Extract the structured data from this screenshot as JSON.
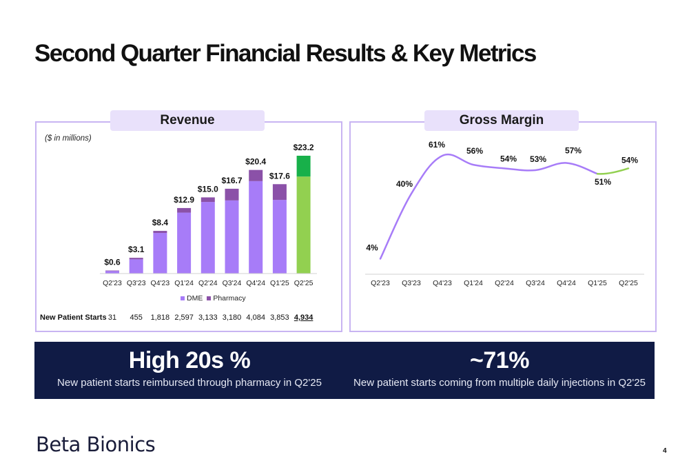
{
  "page": {
    "title": "Second Quarter Financial Results & Key Metrics",
    "page_number": "4",
    "logo_text": "Beta Bionics"
  },
  "revenue_panel": {
    "header": "Revenue",
    "units_note": "($ in millions)",
    "legend": [
      {
        "label": "DME",
        "color": "#a77cf8"
      },
      {
        "label": "Pharmacy",
        "color": "#8b51a8"
      }
    ],
    "new_patient_starts_label": "New Patient Starts",
    "new_patient_starts": [
      "31",
      "455",
      "1,818",
      "2,597",
      "3,133",
      "3,180",
      "4,084",
      "3,853",
      "4,934"
    ]
  },
  "gross_margin_panel": {
    "header": "Gross Margin"
  },
  "kpis": [
    {
      "value": "High 20s %",
      "caption": "New patient starts reimbursed through pharmacy in Q2'25"
    },
    {
      "value": "~71%",
      "caption": "New patient starts coming from multiple daily injections in Q2'25"
    }
  ],
  "colors": {
    "dme": "#a77cf8",
    "pharmacy": "#8b51a8",
    "dme_current": "#92d050",
    "pharmacy_current": "#18b04a",
    "line": "#a77cf8",
    "line_current": "#92d050",
    "panel_border": "#c8b4f2",
    "banner": "#101b45"
  },
  "chart_data": [
    {
      "type": "bar",
      "title": "Revenue",
      "categories": [
        "Q2'23",
        "Q3'23",
        "Q4'23",
        "Q1'24",
        "Q2'24",
        "Q3'24",
        "Q4'24",
        "Q1'25",
        "Q2'25"
      ],
      "series": [
        {
          "name": "DME",
          "values": [
            0.5,
            2.8,
            8.0,
            12.0,
            14.1,
            14.4,
            18.2,
            14.5,
            19.1
          ]
        },
        {
          "name": "Pharmacy",
          "values": [
            0.1,
            0.3,
            0.4,
            0.9,
            0.9,
            2.3,
            2.2,
            3.1,
            4.1
          ]
        }
      ],
      "totals": [
        "$0.6",
        "$3.1",
        "$8.4",
        "$12.9",
        "$15.0",
        "$16.7",
        "$20.4",
        "$17.6",
        "$23.2"
      ],
      "total_values": [
        0.6,
        3.1,
        8.4,
        12.9,
        15.0,
        16.7,
        20.4,
        17.6,
        23.2
      ],
      "stacked": true,
      "ylim": [
        0,
        23.2
      ],
      "grid": false,
      "legend_position": "bottom"
    },
    {
      "type": "line",
      "title": "Gross Margin",
      "categories": [
        "Q2'23",
        "Q3'23",
        "Q4'23",
        "Q1'24",
        "Q2'24",
        "Q3'24",
        "Q4'24",
        "Q1'25",
        "Q2'25"
      ],
      "values": [
        4,
        40,
        61,
        56,
        54,
        53,
        57,
        51,
        54
      ],
      "labels": [
        "4%",
        "40%",
        "61%",
        "56%",
        "54%",
        "53%",
        "57%",
        "51%",
        "54%"
      ],
      "ylim": [
        0,
        61
      ],
      "grid": false
    }
  ]
}
